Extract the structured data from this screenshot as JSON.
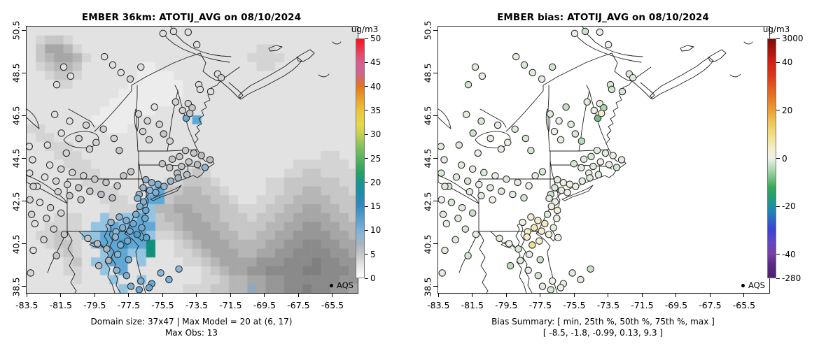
{
  "chart_data": {
    "type": "map-scatter",
    "figure_description": "Side-by-side model map with AQS observation overlay and bias map",
    "panels": [
      {
        "title": "EMBER 36km: ATOTIJ_AVG on 08/10/2024",
        "footer_line1": "Domain size: 37x47 | Max Model = 20 at (6, 17)",
        "footer_line2": "Max Obs: 13",
        "value_key": "obs",
        "has_raster": true,
        "colorbar": {
          "label": "ug/m3",
          "ticks": [
            {
              "label": "0",
              "pos": 0
            },
            {
              "label": "5",
              "pos": 0.1
            },
            {
              "label": "10",
              "pos": 0.2
            },
            {
              "label": "15",
              "pos": 0.3
            },
            {
              "label": "20",
              "pos": 0.4
            },
            {
              "label": "25",
              "pos": 0.5
            },
            {
              "label": "30",
              "pos": 0.6
            },
            {
              "label": "35",
              "pos": 0.7
            },
            {
              "label": "40",
              "pos": 0.8
            },
            {
              "label": "45",
              "pos": 0.9
            },
            {
              "label": "50",
              "pos": 1
            }
          ],
          "range": [
            0,
            50
          ],
          "stops": [
            [
              0,
              "#ffffff"
            ],
            [
              0.05,
              "#e6e6e6"
            ],
            [
              0.1,
              "#c6c6c6"
            ],
            [
              0.14,
              "#a9b4bd"
            ],
            [
              0.18,
              "#8cb6d6"
            ],
            [
              0.24,
              "#5ba3d0"
            ],
            [
              0.3,
              "#3388c0"
            ],
            [
              0.36,
              "#1d8ca8"
            ],
            [
              0.4,
              "#17968e"
            ],
            [
              0.44,
              "#27a060"
            ],
            [
              0.5,
              "#58b35f"
            ],
            [
              0.56,
              "#8ec45e"
            ],
            [
              0.6,
              "#c4cf52"
            ],
            [
              0.64,
              "#e3d84a"
            ],
            [
              0.7,
              "#ecc53b"
            ],
            [
              0.76,
              "#e89a28"
            ],
            [
              0.8,
              "#e2761e"
            ],
            [
              0.86,
              "#cd6490"
            ],
            [
              0.9,
              "#d75f8f"
            ],
            [
              0.94,
              "#e54664"
            ],
            [
              1,
              "#fb1020"
            ]
          ]
        }
      },
      {
        "title": "EMBER bias: ATOTIJ_AVG on 08/10/2024",
        "footer_line1": "Bias Summary: [ min, 25th %, 50th %, 75th %, max ]",
        "footer_line2": "[ -8.5,  -1.8,  -0.99,  0.13,  9.3 ]",
        "value_key": "bias",
        "has_raster": false,
        "colorbar": {
          "label": "ug/m3",
          "ticks": [
            {
              "label": "3000",
              "pos": 1
            },
            {
              "label": "40",
              "pos": 0.9
            },
            {
              "label": "20",
              "pos": 0.7
            },
            {
              "label": "0",
              "pos": 0.5
            },
            {
              "label": "-20",
              "pos": 0.3
            },
            {
              "label": "-40",
              "pos": 0.1
            },
            {
              "label": "-280",
              "pos": 0
            }
          ],
          "anchors": [
            [
              -280,
              0
            ],
            [
              -40,
              0.1
            ],
            [
              -20,
              0.3
            ],
            [
              0,
              0.5
            ],
            [
              20,
              0.7
            ],
            [
              40,
              0.9
            ],
            [
              3000,
              1
            ]
          ],
          "stops": [
            [
              0,
              "#4b2070"
            ],
            [
              0.06,
              "#5c2d87"
            ],
            [
              0.1,
              "#7a3fa8"
            ],
            [
              0.15,
              "#5f46c9"
            ],
            [
              0.2,
              "#3f3fd6"
            ],
            [
              0.24,
              "#2e62c9"
            ],
            [
              0.28,
              "#1f86b4"
            ],
            [
              0.3,
              "#18949e"
            ],
            [
              0.34,
              "#239e71"
            ],
            [
              0.38,
              "#3aa85a"
            ],
            [
              0.42,
              "#7cc287"
            ],
            [
              0.46,
              "#b5dcb6"
            ],
            [
              0.5,
              "#eff0ea"
            ],
            [
              0.54,
              "#f4eecb"
            ],
            [
              0.58,
              "#f2e49a"
            ],
            [
              0.62,
              "#eed672"
            ],
            [
              0.66,
              "#ecc14e"
            ],
            [
              0.7,
              "#ec9f33"
            ],
            [
              0.75,
              "#e87b26"
            ],
            [
              0.8,
              "#e2581e"
            ],
            [
              0.85,
              "#dc3418"
            ],
            [
              0.9,
              "#d41f16"
            ],
            [
              0.95,
              "#ad1410"
            ],
            [
              1,
              "#7f0b08"
            ]
          ]
        }
      }
    ],
    "axes": {
      "xticks": [
        -83.5,
        -81.5,
        -79.5,
        -77.5,
        -75.5,
        -73.5,
        -71.5,
        -69.5,
        -67.5,
        -65.5
      ],
      "yticks": [
        50.5,
        48.5,
        46.5,
        44.5,
        42.5,
        40.5,
        38.5
      ]
    },
    "legend": {
      "label": "AQS"
    },
    "stations": [
      [
        48.8,
        2.1,
        3,
        -0.5
      ],
      [
        51.4,
        6.8,
        3,
        0.2
      ],
      [
        57.7,
        17.8,
        3,
        -1.2
      ],
      [
        58.8,
        19.2,
        4,
        -0.8
      ],
      [
        52.0,
        21.8,
        3,
        -1.5
      ],
      [
        52.4,
        23.6,
        3,
        -2.2
      ],
      [
        45.0,
        28.3,
        4,
        -1.0
      ],
      [
        48.8,
        28.9,
        4,
        -0.6
      ],
      [
        47.1,
        31.5,
        4,
        0.3
      ],
      [
        48.2,
        34.4,
        11,
        -8.5
      ],
      [
        55.6,
        24.4,
        3,
        -1.8
      ],
      [
        44.4,
        1.8,
        3,
        -2.5
      ],
      [
        41.2,
        2.6,
        3,
        -0.4
      ],
      [
        50.0,
        30.5,
        5,
        -4.8
      ],
      [
        49.3,
        32.6,
        5,
        3.2
      ],
      [
        28.5,
        17.3,
        3,
        -0.9
      ],
      [
        26.0,
        14.4,
        3,
        -1.4
      ],
      [
        31.3,
        19.7,
        4,
        -0.7
      ],
      [
        34.5,
        15.2,
        3,
        -2.1
      ],
      [
        23.5,
        11.3,
        3,
        -0.4
      ],
      [
        11.2,
        15.2,
        3,
        -1.1
      ],
      [
        13.3,
        18.6,
        3,
        -0.6
      ],
      [
        9.1,
        21.8,
        3,
        -1.9
      ],
      [
        33.8,
        32.8,
        4,
        -1.2
      ],
      [
        36.5,
        35.4,
        4,
        -0.5
      ],
      [
        38.6,
        30.2,
        3,
        -2.8
      ],
      [
        40.1,
        36.7,
        4,
        -0.9
      ],
      [
        35.1,
        39.4,
        4,
        0.1
      ],
      [
        41.4,
        40.3,
        5,
        -1.3
      ],
      [
        37.0,
        42.5,
        4,
        -0.7
      ],
      [
        43.3,
        43.0,
        4,
        -3.9
      ],
      [
        8.5,
        33.0,
        3,
        -0.8
      ],
      [
        13.0,
        35.5,
        3,
        -1.6
      ],
      [
        18.0,
        37.0,
        4,
        -0.4
      ],
      [
        23.2,
        38.5,
        4,
        -1.1
      ],
      [
        10.5,
        40.0,
        3,
        -2.3
      ],
      [
        15.8,
        42.0,
        4,
        -0.9
      ],
      [
        21.0,
        43.5,
        4,
        0.4
      ],
      [
        26.4,
        42.0,
        4,
        -1.5
      ],
      [
        6.3,
        44.5,
        3,
        -1.0
      ],
      [
        19.0,
        46.0,
        4,
        -0.6
      ],
      [
        28.0,
        46.5,
        5,
        -1.8
      ],
      [
        12.0,
        47.5,
        4,
        -0.2
      ],
      [
        48.0,
        46.5,
        5,
        -1.2
      ],
      [
        50.5,
        47.5,
        5,
        -0.8
      ],
      [
        52.8,
        48.4,
        6,
        -0.4
      ],
      [
        46.2,
        48.8,
        5,
        -1.5
      ],
      [
        44.0,
        49.8,
        5,
        -0.9
      ],
      [
        49.0,
        50.8,
        5,
        0.6
      ],
      [
        51.6,
        51.8,
        6,
        -0.5
      ],
      [
        53.9,
        52.9,
        9,
        -2.0
      ],
      [
        46.8,
        52.5,
        5,
        -1.1
      ],
      [
        43.2,
        53.0,
        5,
        -0.6
      ],
      [
        41.0,
        51.5,
        5,
        -1.9
      ],
      [
        45.5,
        55.0,
        6,
        -0.3
      ],
      [
        48.4,
        55.6,
        6,
        -1.3
      ],
      [
        55.4,
        50.0,
        6,
        -0.7
      ],
      [
        36.0,
        57.5,
        8,
        -1.0
      ],
      [
        37.8,
        58.6,
        9,
        0.8
      ],
      [
        39.7,
        59.2,
        10,
        1.5
      ],
      [
        41.5,
        60.0,
        9,
        -0.5
      ],
      [
        35.2,
        60.5,
        8,
        -1.4
      ],
      [
        37.2,
        61.5,
        9,
        -0.9
      ],
      [
        39.0,
        62.3,
        10,
        0.3
      ],
      [
        34.0,
        63.0,
        8,
        -2.2
      ],
      [
        43.5,
        58.0,
        8,
        -0.6
      ],
      [
        45.8,
        56.8,
        7,
        -1.1
      ],
      [
        7.0,
        52.0,
        3,
        -1.0
      ],
      [
        10.4,
        53.5,
        4,
        -0.7
      ],
      [
        13.8,
        54.8,
        4,
        -1.3
      ],
      [
        17.2,
        56.0,
        4,
        -0.2
      ],
      [
        20.6,
        57.3,
        5,
        -1.6
      ],
      [
        24.0,
        58.5,
        5,
        -0.8
      ],
      [
        27.4,
        59.8,
        5,
        0.2
      ],
      [
        5.5,
        56.5,
        3,
        -1.2
      ],
      [
        8.9,
        58.0,
        4,
        -2.0
      ],
      [
        12.3,
        59.3,
        4,
        -0.5
      ],
      [
        15.7,
        60.5,
        5,
        -1.1
      ],
      [
        19.1,
        61.8,
        5,
        -0.9
      ],
      [
        22.5,
        63.0,
        6,
        -0.4
      ],
      [
        25.9,
        64.3,
        6,
        -1.7
      ],
      [
        29.3,
        56.0,
        5,
        -0.6
      ],
      [
        31.5,
        54.5,
        5,
        -1.4
      ],
      [
        9.5,
        62.0,
        4,
        -0.8
      ],
      [
        13.0,
        63.5,
        5,
        -1.0
      ],
      [
        16.4,
        65.0,
        5,
        0.5
      ],
      [
        3.2,
        60.0,
        3,
        -1.5
      ],
      [
        33.5,
        64.5,
        9,
        -0.7
      ],
      [
        35.3,
        65.8,
        10,
        0.9
      ],
      [
        34.2,
        67.5,
        10,
        -0.3
      ],
      [
        36.0,
        69.0,
        11,
        1.8
      ],
      [
        33.0,
        70.5,
        10,
        -1.2
      ],
      [
        35.8,
        72.0,
        11,
        0.4
      ],
      [
        28.0,
        71.5,
        9,
        2.5
      ],
      [
        30.1,
        72.8,
        10,
        4.5
      ],
      [
        32.2,
        74.0,
        11,
        5.5
      ],
      [
        29.0,
        75.5,
        10,
        6.5
      ],
      [
        31.2,
        76.8,
        11,
        3.5
      ],
      [
        33.4,
        78.0,
        13,
        1.5
      ],
      [
        27.0,
        77.0,
        9,
        5.0
      ],
      [
        25.5,
        73.5,
        8,
        2.0
      ],
      [
        34.8,
        75.5,
        11,
        -0.8
      ],
      [
        36.2,
        79.2,
        12,
        0.6
      ],
      [
        30.5,
        80.5,
        11,
        2.8
      ],
      [
        28.4,
        82.0,
        10,
        9.3
      ],
      [
        26.8,
        79.0,
        9,
        4.2
      ],
      [
        18.5,
        79.5,
        5,
        -0.9
      ],
      [
        21.4,
        81.5,
        6,
        0.3
      ],
      [
        24.2,
        83.5,
        7,
        -1.5
      ],
      [
        27.5,
        85.5,
        9,
        -0.6
      ],
      [
        30.8,
        87.5,
        10,
        -2.5
      ],
      [
        24.8,
        87.8,
        7,
        -1.0
      ],
      [
        21.8,
        89.8,
        6,
        -3.5
      ],
      [
        27.2,
        91.5,
        9,
        -0.4
      ],
      [
        30.2,
        93.5,
        10,
        -1.8
      ],
      [
        34.5,
        95.5,
        10,
        0.8
      ],
      [
        37.8,
        96.5,
        11,
        -0.5
      ],
      [
        40.5,
        92.5,
        9,
        -1.2
      ],
      [
        4.0,
        66.0,
        3,
        -1.3
      ],
      [
        7.2,
        68.0,
        4,
        -0.8
      ],
      [
        10.4,
        70.0,
        4,
        -2.6
      ],
      [
        6.0,
        72.0,
        4,
        -1.0
      ],
      [
        2.5,
        74.0,
        3,
        -0.5
      ],
      [
        8.2,
        76.0,
        4,
        -1.6
      ],
      [
        11.4,
        78.0,
        5,
        -0.9
      ],
      [
        5.2,
        80.0,
        4,
        -1.2
      ],
      [
        2.0,
        84.0,
        3,
        -0.7
      ],
      [
        9.0,
        86.0,
        5,
        -1.9
      ],
      [
        0.8,
        45.0,
        3,
        -1.0
      ],
      [
        1.8,
        50.0,
        3,
        -0.6
      ],
      [
        0.9,
        55.0,
        3,
        -1.4
      ],
      [
        2.0,
        60.0,
        4,
        -0.9
      ],
      [
        1.0,
        65.0,
        4,
        -0.3
      ],
      [
        1.5,
        70.5,
        4,
        -1.1
      ],
      [
        31.5,
        97.5,
        10,
        -0.8
      ],
      [
        34.0,
        98.8,
        11,
        -1.5
      ],
      [
        37.0,
        98.0,
        11,
        0.4
      ],
      [
        43.0,
        95.0,
        10,
        -0.9
      ],
      [
        46.0,
        91.0,
        9,
        -2.8
      ],
      [
        1.2,
        92.5,
        4,
        -0.7
      ]
    ],
    "model_raster": {
      "cols": 36,
      "rows_count": 30,
      "palette": {
        "0": "#f5f5f5",
        "1": "#ececec",
        "2": "#e2e2e2",
        "3": "#d4d4d4",
        "4": "#c6c6c6",
        "5": "#b6b6b6",
        "6": "#a6a6a6",
        "7": "#969696",
        "8": "#8a8a8a",
        "9": "#7f7f7f",
        "a": "#93c4e1",
        "b": "#5fa8d5",
        "c": "#3090c7",
        "d": "#8fa8bc",
        "e": "#11907c"
      },
      "rows": [
        "222222222222222222222222222222222222",
        "234432222222222222222222222222222222",
        "246653222222222222222222233222222222",
        "245665322222222222222222333322222222",
        "234554222222112222222222233222222222",
        "223443222222111122222222222222222222",
        "222332222221111112222222222222222222",
        "222222222211111112222222222222222222",
        "222222222111111122222222222222222222",
        "222222221111112222222222222222222222",
        "222222211111222222b22222222222222222",
        "332222221112222222222222222222222222",
        "233222222222222222222222222222222222",
        "223332222222222222222222222222222222",
        "222333222222222222222222222222223322",
        "222233322222222222322222222223333332",
        "222223332222222233432222222233443333",
        "222222333222222334443222223344444433",
        "2222222333222ab445544322223344554443",
        "2222222233322bb455554432233445555444",
        "222222222333aa5566555443334455665544",
        "22233322a3aaba4556655444344556666554",
        "2233332aababbb4456665544445566776655",
        "233433aabbbbba3345666554455667777665",
        "2234432abbcbbe2234566655556677887766",
        "22234322abbaae2233456665566778888776",
        "2222342aabb2a22223345666677788898877",
        "22223322a2b2222222234566778888998887",
        "222223222a22a22222233455667788888877",
        "2222222222a2222223334455d67788988776"
      ]
    }
  }
}
